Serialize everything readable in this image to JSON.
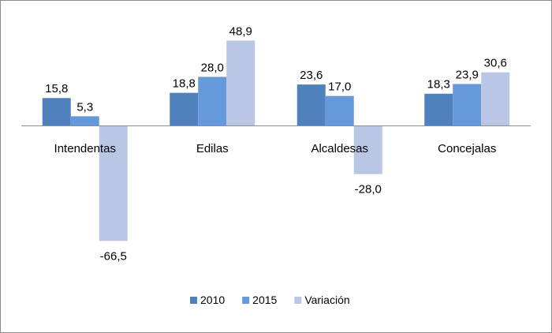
{
  "chart_data": {
    "type": "bar",
    "categories": [
      "Intendentas",
      "Edilas",
      "Alcaldesas",
      "Concejalas"
    ],
    "series": [
      {
        "name": "2010",
        "color": "#4f81bd",
        "values": [
          15.8,
          18.8,
          23.6,
          18.3
        ],
        "labels": [
          "15,8",
          "18,8",
          "23,6",
          "18,3"
        ]
      },
      {
        "name": "2015",
        "color": "#6699d9",
        "values": [
          5.3,
          28.0,
          17.0,
          23.9
        ],
        "labels": [
          "5,3",
          "28,0",
          "17,0",
          "23,9"
        ]
      },
      {
        "name": "Variación",
        "color": "#b9c7e4",
        "values": [
          -66.5,
          48.9,
          -28.0,
          30.6
        ],
        "labels": [
          "-66,5",
          "48,9",
          "-28,0",
          "30,6"
        ]
      }
    ],
    "ylim": [
      -66.5,
      48.9
    ],
    "legend_position": "bottom",
    "grid": false,
    "title": "",
    "xlabel": "",
    "ylabel": ""
  }
}
